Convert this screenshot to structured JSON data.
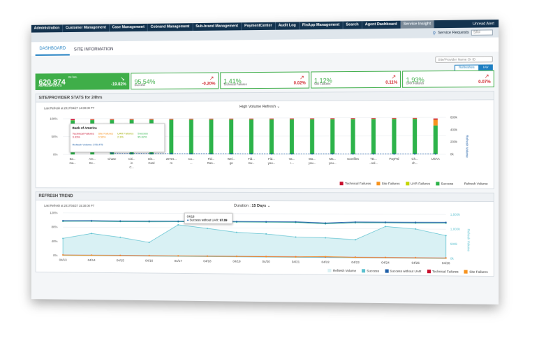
{
  "nav": {
    "items": [
      "Administration",
      "Customer Management",
      "Case Management",
      "Cobrand Management",
      "Sub-brand Management",
      "PaymentCenter",
      "Audit Log",
      "FinApp Management",
      "Search",
      "Agent Dashboard",
      "Service Insight"
    ],
    "active_index": 10,
    "user": "Unread Alert"
  },
  "subbar": {
    "service_requests": "Service Requests",
    "search_placeholder": "SR#"
  },
  "tabs": [
    "DASHBOARD",
    "SITE INFORMATION"
  ],
  "toolbar": {
    "search_placeholder": "Site/Provider Name Or ID",
    "toggle": [
      "Refreshes",
      "IAV"
    ]
  },
  "stats": [
    {
      "value": "620,874",
      "sub": "24 hrs.",
      "label": "REFRESH STATS",
      "pct": "-19.82%"
    },
    {
      "value": "95.54%",
      "label": "Success",
      "pct": "-0.20%"
    },
    {
      "value": "1.41%",
      "label": "Technical Failures",
      "pct": "0.02%"
    },
    {
      "value": "1.12%",
      "label": "Site Failures",
      "pct": "0.11%"
    },
    {
      "value": "1.93%",
      "label": "UAR Failures",
      "pct": "0.07%"
    }
  ],
  "site_panel": {
    "title": "SITE/PROVIDER STATS for 24hrs",
    "last_refresh": "Last Refresh at 2017/04/27 14:00:00 PT",
    "dropdown": "High Volume Refresh",
    "right_axis": "Refresh Volume",
    "tooltip": {
      "title": "Bank of America",
      "tech": "Technical Failures",
      "tech_v": "3.03%",
      "site": "Site Failures",
      "site_v": "0.56%",
      "uar": "UAR Failures",
      "uar_v": "2.3%",
      "success": "Success",
      "success_v": "95.62%",
      "volume": "Refresh Volume: 375,475"
    },
    "legend": [
      "Technical Failures",
      "Site Failures",
      "UAR Failures",
      "Success",
      "Refresh Volume"
    ]
  },
  "trend_panel": {
    "title": "REFRESH TREND",
    "last_refresh": "Last Refresh at 2017/04/27 15:30:00 PT",
    "duration_label": "Duration :",
    "duration": "15 Days",
    "right_axis": "Refresh Volume",
    "tooltip": {
      "date": "04/18",
      "label": "Success without UAR:",
      "value": "97.89"
    },
    "legend": [
      "Refresh Volume",
      "Success",
      "Success without UAR",
      "Technical Failures",
      "Site Failures"
    ]
  },
  "colors": {
    "success": "#2db34a",
    "tech": "#c8102e",
    "site": "#f7931e",
    "uar": "#c4d600",
    "volume": "#1f5fa8",
    "trend_fill": "#d9f1f4",
    "trend_line": "#5bc0cf"
  },
  "chart_data": [
    {
      "type": "bar",
      "categories": [
        "Ba... ma...",
        "Am... Ex...",
        "Chase",
        "Citi... in C...",
        "Dis... Card",
        "20Yes... m",
        "Ca... ...",
        "Fid... Ran...",
        "Wel... go",
        "Fid... Inv...",
        "Fid... you...",
        "Va... +...",
        "Ma... you...",
        "Ma... you...",
        "sconfiles",
        "TD... ..ool...",
        "PayPal",
        "Ch... ch...",
        "USAA"
      ],
      "y_left_ticks": [
        "100%",
        "50%",
        "0%"
      ],
      "y_right_ticks": [
        "600k",
        "400k",
        "200k",
        "0k"
      ],
      "ylim": [
        0,
        100
      ],
      "y2lim": [
        0,
        600
      ],
      "series": [
        {
          "name": "Success",
          "values": [
            95.6,
            96,
            96,
            96,
            96,
            96,
            96,
            96,
            96,
            96,
            96,
            96,
            96,
            96,
            96,
            96,
            96,
            96,
            78
          ]
        },
        {
          "name": "Site Failures",
          "values": [
            0.6,
            1,
            1,
            1,
            1,
            1,
            1,
            1,
            1,
            1,
            1,
            1,
            1,
            1,
            1,
            1,
            1,
            1,
            16
          ]
        },
        {
          "name": "Technical Failures",
          "values": [
            3,
            1.5,
            1.5,
            1.5,
            1.5,
            1.5,
            1.5,
            1.5,
            1.5,
            1.5,
            1.5,
            1.5,
            1.5,
            1.5,
            1.5,
            1.5,
            1.5,
            1.5,
            3
          ]
        },
        {
          "name": "Refresh Volume",
          "values": [
            375,
            140,
            20,
            18,
            15,
            14,
            12,
            12,
            11,
            10,
            9,
            9,
            8,
            8,
            7,
            7,
            6,
            6,
            5
          ]
        }
      ]
    },
    {
      "type": "line",
      "x": [
        "04/13",
        "04/14",
        "04/15",
        "04/16",
        "04/17",
        "04/18",
        "04/19",
        "04/20",
        "04/21",
        "04/22",
        "04/23",
        "04/24",
        "04/25",
        "04/26"
      ],
      "y_left_ticks": [
        "120%",
        "80%",
        "40%",
        "0%"
      ],
      "y_right_ticks": [
        "1,500k",
        "1,000k",
        "500k",
        "0k"
      ],
      "ylim": [
        0,
        120
      ],
      "y2lim": [
        0,
        1500
      ],
      "series": [
        {
          "name": "Refresh Volume",
          "values": [
            600,
            780,
            650,
            480,
            1100,
            980,
            850,
            800,
            700,
            680,
            620,
            1080,
            1000,
            780
          ]
        },
        {
          "name": "Success",
          "values": [
            96,
            96.5,
            96.2,
            96,
            96.5,
            97,
            96.6,
            96.5,
            96.4,
            93,
            96.3,
            96.5,
            96.4,
            96.5
          ]
        },
        {
          "name": "Success without UAR",
          "values": [
            98,
            98.5,
            98,
            98,
            98.3,
            97.89,
            98.2,
            98.1,
            98.1,
            95,
            98.2,
            98.3,
            98.3,
            98.4
          ]
        },
        {
          "name": "Technical Failures",
          "values": [
            1.5,
            1.5,
            1.4,
            1.4,
            1.5,
            1.4,
            1.4,
            1.4,
            1.4,
            1.8,
            1.4,
            1.4,
            1.4,
            1.4
          ]
        },
        {
          "name": "Site Failures",
          "values": [
            1.1,
            1.1,
            1.0,
            1.0,
            1.1,
            1.0,
            1.0,
            1.0,
            1.0,
            2.5,
            1.0,
            1.0,
            1.0,
            1.0
          ]
        }
      ]
    }
  ]
}
